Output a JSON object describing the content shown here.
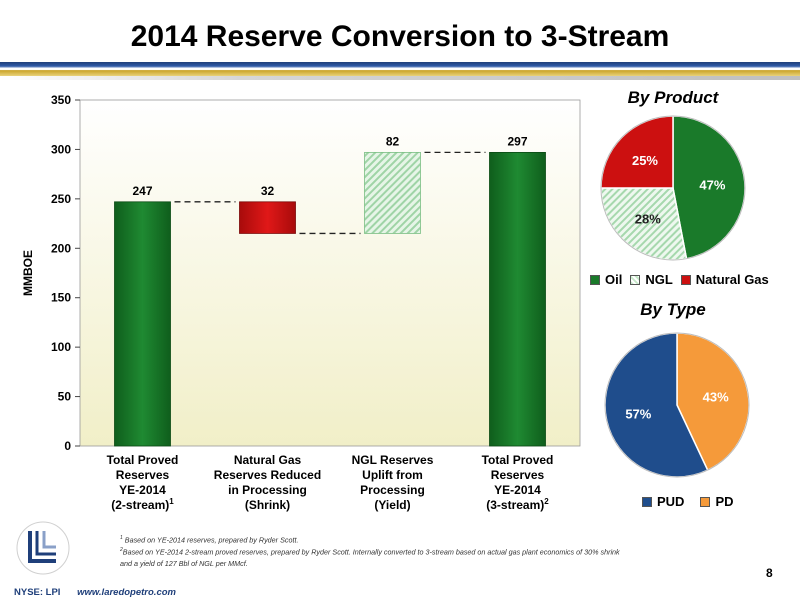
{
  "title": "2014 Reserve Conversion to 3-Stream",
  "chart_data": [
    {
      "type": "bar",
      "subtype": "waterfall",
      "ylabel": "MMBOE",
      "ylim": [
        0,
        350
      ],
      "yticks": [
        0,
        50,
        100,
        150,
        200,
        250,
        300,
        350
      ],
      "grid": false,
      "bars": [
        {
          "category_lines": [
            "Total Proved",
            "Reserves",
            "YE-2014",
            "(2-stream)"
          ],
          "superscript": "1",
          "start": 0,
          "end": 247,
          "label": "247",
          "kind": "total"
        },
        {
          "category_lines": [
            "Natural Gas",
            "Reserves Reduced",
            "in Processing",
            "(Shrink)"
          ],
          "superscript": "",
          "start": 215,
          "end": 247,
          "label": "32",
          "kind": "decrease"
        },
        {
          "category_lines": [
            "NGL Reserves",
            "Uplift from",
            "Processing",
            "(Yield)"
          ],
          "superscript": "",
          "start": 215,
          "end": 297,
          "label": "82",
          "kind": "increase"
        },
        {
          "category_lines": [
            "Total Proved",
            "Reserves",
            "YE-2014",
            "(3-stream)"
          ],
          "superscript": "2",
          "start": 0,
          "end": 297,
          "label": "297",
          "kind": "total"
        }
      ],
      "colors": {
        "total": "#1a7a2a",
        "decrease": "#cc1010",
        "increase": "#c5e8c8"
      }
    },
    {
      "type": "pie",
      "title": "By Product",
      "slices": [
        {
          "name": "Oil",
          "value": 47,
          "label": "47%",
          "color": "#1a7a2a",
          "pattern": "solid"
        },
        {
          "name": "NGL",
          "value": 28,
          "label": "28%",
          "color": "#c5e8c8",
          "pattern": "hatch"
        },
        {
          "name": "Natural Gas",
          "value": 25,
          "label": "25%",
          "color": "#cc1010",
          "pattern": "solid"
        }
      ],
      "legend": [
        "Oil",
        "NGL",
        "Natural Gas"
      ],
      "legend_position": "bottom"
    },
    {
      "type": "pie",
      "title": "By Type",
      "slices": [
        {
          "name": "PD",
          "value": 43,
          "label": "43%",
          "color": "#f59a3a",
          "pattern": "solid"
        },
        {
          "name": "PUD",
          "value": 57,
          "label": "57%",
          "color": "#1f4d8c",
          "pattern": "solid"
        }
      ],
      "legend": [
        "PUD",
        "PD"
      ],
      "legend_position": "bottom"
    }
  ],
  "footnotes": {
    "note1_mark": "1",
    "note1": "Based on YE-2014 reserves, prepared by Ryder Scott.",
    "note2_mark": "2",
    "note2_line1": "Based on YE-2014 2-stream proved reserves, prepared by Ryder Scott.  Internally converted to 3-stream based on actual gas plant economics of 30% shrink",
    "note2_line2": "and a yield of 127 Bbl of NGL per MMcf."
  },
  "page_number": "8",
  "footer": {
    "ticker": "NYSE: LPI",
    "website": "www.laredopetro.com"
  },
  "logo_icon": "laredo-logo-icon"
}
